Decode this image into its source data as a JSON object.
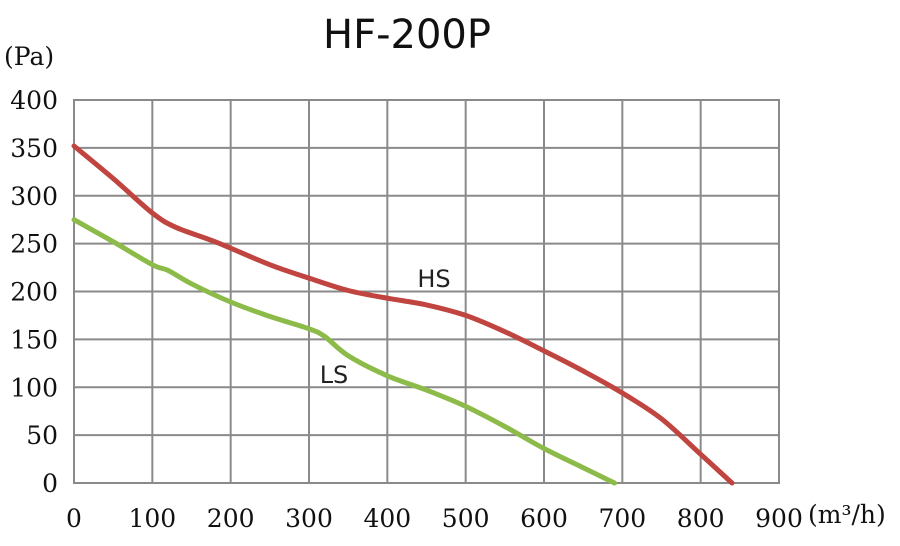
{
  "chart_data": {
    "type": "line",
    "title": "HF-200P",
    "xlabel": "(m³/h)",
    "ylabel": "(Pa)",
    "xlim": [
      0,
      900
    ],
    "ylim": [
      0,
      400
    ],
    "x_ticks": [
      0,
      100,
      200,
      300,
      400,
      500,
      600,
      700,
      800,
      900
    ],
    "y_ticks": [
      0,
      50,
      100,
      150,
      200,
      250,
      300,
      350,
      400
    ],
    "grid": true,
    "legend": "none",
    "series": [
      {
        "name": "HS",
        "color": "#c0443f",
        "x": [
          0,
          50,
          100,
          130,
          180,
          250,
          300,
          350,
          400,
          450,
          500,
          550,
          600,
          650,
          700,
          750,
          800,
          840
        ],
        "y": [
          352,
          318,
          282,
          267,
          252,
          228,
          214,
          201,
          193,
          186,
          175,
          158,
          138,
          117,
          94,
          67,
          30,
          0
        ]
      },
      {
        "name": "LS",
        "color": "#8dbb49",
        "x": [
          0,
          50,
          100,
          120,
          150,
          200,
          250,
          300,
          320,
          350,
          400,
          450,
          500,
          550,
          600,
          650,
          690
        ],
        "y": [
          275,
          252,
          228,
          222,
          208,
          189,
          174,
          161,
          153,
          133,
          112,
          97,
          80,
          59,
          36,
          16,
          0
        ]
      }
    ]
  }
}
